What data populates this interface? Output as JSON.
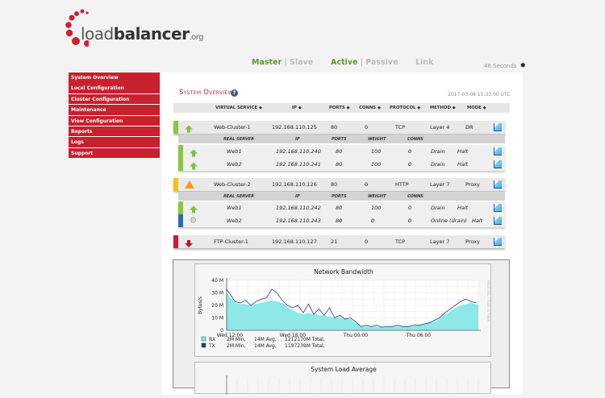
{
  "logo": {
    "text_light": "load",
    "text_bold": "balancer",
    "suffix": ".org"
  },
  "status": {
    "master": "Master",
    "slave": "Slave",
    "active": "Active",
    "passive": "Passive",
    "link": "Link",
    "sep": "|"
  },
  "refresh": {
    "label": "46 Seconds"
  },
  "sidebar": {
    "items": [
      {
        "label": "System Overview"
      },
      {
        "label": "Local Configuration"
      },
      {
        "label": "Cluster Configuration"
      },
      {
        "label": "Maintenance"
      },
      {
        "label": "View Configuration"
      },
      {
        "label": "Reports"
      },
      {
        "label": "Logs"
      },
      {
        "label": "Support"
      }
    ]
  },
  "page": {
    "title": "System Overview",
    "help": "?",
    "timestamp": "2017-03-08 15:33:00 UTC"
  },
  "table": {
    "headers": [
      "VIRTUAL SERVICE ◆",
      "IP ◆",
      "PORTS ◆",
      "CONNS ◆",
      "PROTOCOL ◆",
      "METHOD ◆",
      "MODE ◆"
    ],
    "sub_headers": [
      "REAL SERVER",
      "IP",
      "PORTS",
      "WEIGHT",
      "CONNS"
    ],
    "clusters": [
      {
        "name": "Web-Cluster-1",
        "ip": "192.168.110.125",
        "ports": "80",
        "conns": "0",
        "protocol": "TCP",
        "method": "Layer 4",
        "mode": "DR",
        "status": "up",
        "color": "#8dc63f",
        "servers": [
          {
            "name": "Web1",
            "ip": "192.168.110.240",
            "ports": "80",
            "weight": "100",
            "conns": "0",
            "action": "Drain",
            "halt": "Halt",
            "status": "up",
            "color": "#8dc63f"
          },
          {
            "name": "Web2",
            "ip": "192.168.110.241",
            "ports": "80",
            "weight": "100",
            "conns": "0",
            "action": "Drain",
            "halt": "Halt",
            "status": "up",
            "color": "#8dc63f"
          }
        ]
      },
      {
        "name": "Web-Cluster-2",
        "ip": "192.168.110.126",
        "ports": "80",
        "conns": "0",
        "protocol": "HTTP",
        "method": "Layer 7",
        "mode": "Proxy",
        "status": "warn",
        "color": "#f5c400",
        "servers": [
          {
            "name": "Web1",
            "ip": "192.168.110.242",
            "ports": "80",
            "weight": "100",
            "conns": "0",
            "action": "Drain",
            "halt": "Halt",
            "status": "up",
            "color": "#8dc63f"
          },
          {
            "name": "Web2",
            "ip": "192.168.110.243",
            "ports": "80",
            "weight": "0",
            "conns": "0",
            "action": "Online (drain)",
            "halt": "Halt",
            "status": "drain",
            "color": "#2a6cb0"
          }
        ]
      },
      {
        "name": "FTP-Cluster-1",
        "ip": "192.168.110.127",
        "ports": "21",
        "conns": "0",
        "protocol": "TCP",
        "method": "Layer 7",
        "mode": "Proxy",
        "status": "down",
        "color": "#c8202f",
        "servers": []
      }
    ]
  },
  "chart_data": [
    {
      "type": "area",
      "title": "Network Bandwidth",
      "ylabel": "Bytes/s",
      "ylim": [
        0,
        40
      ],
      "yticks": [
        "0",
        "10 M",
        "20 M",
        "30 M",
        "40 M"
      ],
      "xticks": [
        "Wed 12:00",
        "Wed 18:00",
        "Thu 00:00",
        "Thu 06:00"
      ],
      "side_label": "RRDTOOL / TOBI OETIKER",
      "x_hours": [
        -0.3,
        0.5,
        1,
        1.5,
        2,
        2.5,
        3,
        3.5,
        4,
        4.5,
        5,
        5.5,
        6,
        6.5,
        7,
        7.5,
        8,
        8.5,
        9,
        9.5,
        10,
        10.5,
        11,
        11.5,
        12,
        12.5,
        13,
        13.5,
        14,
        14.5,
        15,
        15.5,
        16,
        16.5,
        17,
        17.5,
        18,
        18.5,
        19,
        19.5,
        20,
        20.5,
        21,
        21.5,
        22,
        22.5,
        23,
        23.5
      ],
      "series": [
        {
          "name": "RX",
          "color": "#8ee8e8",
          "values": [
            30,
            22,
            21,
            21,
            20,
            21,
            22,
            23,
            24,
            23,
            22,
            19,
            16,
            14,
            13,
            14,
            13,
            12,
            12,
            11,
            10,
            10,
            9,
            9,
            6,
            3,
            3,
            3,
            3,
            2.5,
            2.5,
            3,
            3,
            3,
            3,
            3,
            4,
            5,
            6,
            7,
            9,
            12,
            15,
            18,
            20,
            21,
            22,
            21
          ]
        },
        {
          "name": "TX",
          "color": "#1c3f8a",
          "values": [
            33,
            23,
            22,
            24,
            20,
            23,
            25,
            26,
            33,
            30,
            24,
            20,
            18,
            20,
            14,
            21,
            13,
            17,
            12,
            18,
            10,
            12,
            9,
            10,
            7,
            3,
            4,
            3,
            4,
            2.5,
            3,
            3,
            4,
            3,
            3,
            4,
            4,
            5,
            6,
            8,
            10,
            14,
            17,
            20,
            23,
            25,
            23,
            22
          ]
        }
      ],
      "legend": [
        {
          "name": "RX",
          "min": "2M Min,",
          "avg": "14M Avg,",
          "total": "1212170M Total,"
        },
        {
          "name": "TX",
          "min": "2M Min,",
          "avg": "14M Avg,",
          "total": "1197239M Total,"
        }
      ]
    },
    {
      "type": "line",
      "title": "System Load Average"
    }
  ]
}
